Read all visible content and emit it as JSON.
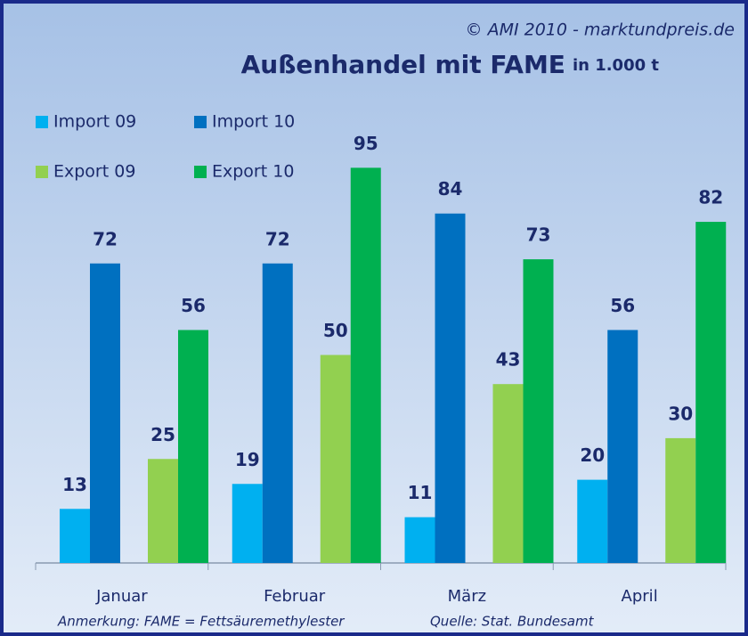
{
  "chart_data": {
    "type": "bar",
    "title": "Außenhandel mit FAME",
    "subtitle": "in 1.000 t",
    "copyright": "© AMI 2010 - marktundpreis.de",
    "note": "Anmerkung: FAME = Fettsäuremethylester",
    "source": "Quelle: Stat. Bundesamt",
    "categories": [
      "Januar",
      "Februar",
      "März",
      "April"
    ],
    "series": [
      {
        "name": "Import 09",
        "color": "#00b0f0",
        "values": [
          13,
          19,
          11,
          20
        ]
      },
      {
        "name": "Import 10",
        "color": "#0070c0",
        "values": [
          72,
          72,
          84,
          56
        ]
      },
      {
        "name": "Export 09",
        "color": "#92d050",
        "values": [
          25,
          50,
          43,
          30
        ]
      },
      {
        "name": "Export 10",
        "color": "#00b050",
        "values": [
          56,
          95,
          73,
          82
        ]
      }
    ]
  }
}
